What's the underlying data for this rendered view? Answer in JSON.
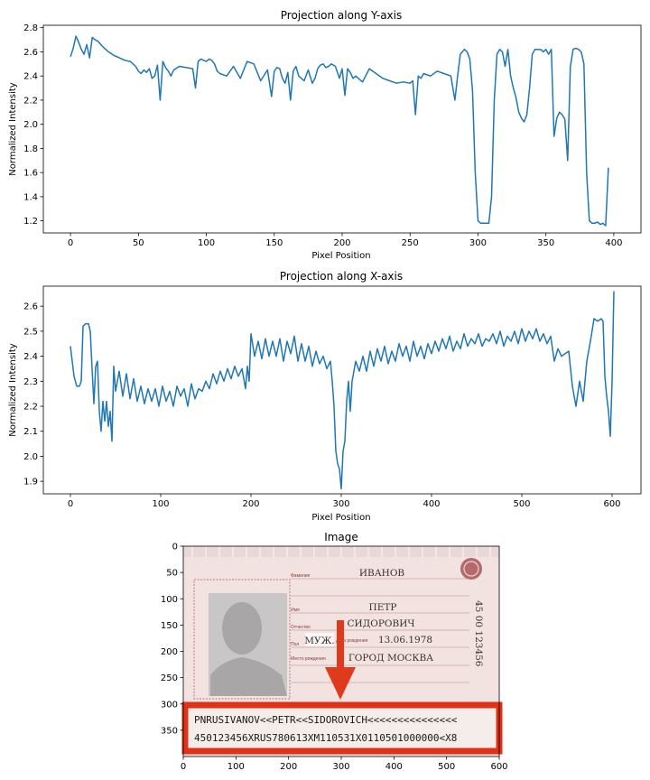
{
  "chart_data": [
    {
      "type": "line",
      "title": "Projection along Y-axis",
      "xlabel": "Pixel Position",
      "ylabel": "Normalized Intensity",
      "xlim": [
        -20,
        420
      ],
      "ylim": [
        1.1,
        2.82
      ],
      "xticks": [
        0,
        50,
        100,
        150,
        200,
        250,
        300,
        350,
        400
      ],
      "yticks": [
        1.2,
        1.4,
        1.6,
        1.8,
        2.0,
        2.2,
        2.4,
        2.6,
        2.8
      ],
      "color": "#1f77b4",
      "x": [
        0,
        2,
        4,
        6,
        8,
        10,
        12,
        14,
        16,
        18,
        20,
        24,
        28,
        32,
        36,
        40,
        44,
        48,
        50,
        52,
        54,
        56,
        58,
        60,
        62,
        64,
        66,
        68,
        70,
        72,
        74,
        76,
        80,
        85,
        90,
        92,
        94,
        96,
        98,
        100,
        102,
        104,
        106,
        108,
        110,
        115,
        120,
        125,
        130,
        135,
        140,
        145,
        148,
        150,
        152,
        154,
        156,
        158,
        160,
        162,
        164,
        166,
        168,
        170,
        172,
        175,
        178,
        180,
        182,
        184,
        186,
        188,
        190,
        192,
        195,
        198,
        200,
        202,
        204,
        206,
        208,
        210,
        215,
        220,
        225,
        230,
        235,
        240,
        245,
        250,
        252,
        254,
        256,
        258,
        260,
        265,
        270,
        275,
        280,
        283,
        285,
        287,
        290,
        292,
        294,
        296,
        298,
        300,
        302,
        305,
        308,
        310,
        312,
        314,
        316,
        318,
        320,
        322,
        324,
        326,
        328,
        330,
        332,
        334,
        336,
        338,
        340,
        342,
        344,
        346,
        348,
        350,
        352,
        354,
        356,
        358,
        360,
        362,
        364,
        366,
        368,
        370,
        372,
        374,
        376,
        378,
        380,
        382,
        384,
        386,
        388,
        390,
        392,
        394,
        396
      ],
      "values": [
        2.56,
        2.63,
        2.73,
        2.68,
        2.62,
        2.58,
        2.66,
        2.55,
        2.72,
        2.7,
        2.69,
        2.64,
        2.6,
        2.57,
        2.55,
        2.53,
        2.52,
        2.48,
        2.44,
        2.42,
        2.45,
        2.43,
        2.46,
        2.38,
        2.4,
        2.49,
        2.2,
        2.52,
        2.47,
        2.44,
        2.4,
        2.45,
        2.48,
        2.47,
        2.46,
        2.3,
        2.52,
        2.54,
        2.53,
        2.52,
        2.54,
        2.53,
        2.5,
        2.44,
        2.42,
        2.4,
        2.48,
        2.38,
        2.52,
        2.5,
        2.36,
        2.45,
        2.23,
        2.44,
        2.47,
        2.46,
        2.38,
        2.34,
        2.43,
        2.2,
        2.44,
        2.48,
        2.4,
        2.38,
        2.36,
        2.45,
        2.34,
        2.38,
        2.46,
        2.49,
        2.5,
        2.47,
        2.48,
        2.5,
        2.48,
        2.38,
        2.46,
        2.24,
        2.46,
        2.43,
        2.38,
        2.4,
        2.35,
        2.46,
        2.42,
        2.38,
        2.36,
        2.34,
        2.35,
        2.34,
        2.36,
        2.08,
        2.4,
        2.38,
        2.42,
        2.4,
        2.44,
        2.42,
        2.4,
        2.2,
        2.4,
        2.58,
        2.62,
        2.6,
        2.54,
        2.28,
        1.6,
        1.2,
        1.18,
        1.18,
        1.18,
        1.4,
        2.2,
        2.58,
        2.62,
        2.6,
        2.48,
        2.62,
        2.4,
        2.3,
        2.22,
        2.1,
        2.05,
        2.02,
        2.08,
        2.3,
        2.58,
        2.62,
        2.62,
        2.62,
        2.6,
        2.62,
        2.58,
        2.62,
        1.9,
        2.05,
        2.1,
        2.08,
        2.04,
        1.7,
        2.48,
        2.62,
        2.63,
        2.62,
        2.6,
        2.5,
        1.6,
        1.2,
        1.18,
        1.18,
        1.19,
        1.17,
        1.18,
        1.16,
        1.64
      ]
    },
    {
      "type": "line",
      "title": "Projection along X-axis",
      "xlabel": "Pixel Position",
      "ylabel": "Normalized Intensity",
      "xlim": [
        -30,
        632
      ],
      "ylim": [
        1.85,
        2.68
      ],
      "xticks": [
        0,
        100,
        200,
        300,
        400,
        500,
        600
      ],
      "yticks": [
        1.9,
        2.0,
        2.1,
        2.2,
        2.3,
        2.4,
        2.5,
        2.6
      ],
      "color": "#1f77b4",
      "x": [
        0,
        4,
        7,
        10,
        12,
        14,
        17,
        20,
        22,
        24,
        26,
        28,
        30,
        32,
        34,
        36,
        38,
        40,
        42,
        44,
        46,
        48,
        50,
        54,
        58,
        62,
        66,
        70,
        74,
        78,
        82,
        86,
        90,
        94,
        98,
        102,
        106,
        110,
        114,
        118,
        122,
        126,
        130,
        134,
        138,
        142,
        146,
        150,
        154,
        158,
        162,
        166,
        170,
        174,
        178,
        182,
        186,
        190,
        194,
        196,
        198,
        200,
        204,
        208,
        212,
        216,
        220,
        224,
        228,
        232,
        236,
        240,
        244,
        248,
        252,
        256,
        260,
        264,
        268,
        272,
        276,
        280,
        284,
        288,
        290,
        292,
        294,
        296,
        298,
        300,
        302,
        304,
        306,
        308,
        310,
        312,
        316,
        320,
        324,
        328,
        332,
        336,
        340,
        344,
        348,
        352,
        356,
        360,
        364,
        368,
        372,
        376,
        380,
        384,
        388,
        392,
        396,
        400,
        404,
        408,
        412,
        416,
        420,
        424,
        428,
        432,
        436,
        440,
        444,
        448,
        452,
        456,
        460,
        464,
        468,
        472,
        476,
        480,
        484,
        488,
        492,
        496,
        500,
        504,
        508,
        512,
        516,
        520,
        524,
        528,
        532,
        536,
        540,
        544,
        548,
        552,
        556,
        560,
        564,
        568,
        572,
        576,
        580,
        584,
        588,
        590,
        592,
        594,
        596,
        598,
        600,
        602
      ],
      "values": [
        2.44,
        2.32,
        2.28,
        2.28,
        2.3,
        2.52,
        2.53,
        2.53,
        2.5,
        2.35,
        2.21,
        2.36,
        2.38,
        2.18,
        2.1,
        2.22,
        2.14,
        2.22,
        2.12,
        2.18,
        2.06,
        2.36,
        2.26,
        2.34,
        2.24,
        2.33,
        2.23,
        2.31,
        2.22,
        2.28,
        2.21,
        2.27,
        2.22,
        2.27,
        2.2,
        2.28,
        2.22,
        2.26,
        2.2,
        2.28,
        2.24,
        2.27,
        2.2,
        2.29,
        2.23,
        2.27,
        2.26,
        2.3,
        2.27,
        2.33,
        2.29,
        2.34,
        2.3,
        2.35,
        2.31,
        2.36,
        2.32,
        2.35,
        2.27,
        2.36,
        2.3,
        2.49,
        2.4,
        2.46,
        2.39,
        2.47,
        2.4,
        2.46,
        2.4,
        2.47,
        2.38,
        2.46,
        2.41,
        2.48,
        2.38,
        2.45,
        2.38,
        2.44,
        2.36,
        2.42,
        2.37,
        2.4,
        2.35,
        2.38,
        2.3,
        2.2,
        2.02,
        1.97,
        1.95,
        1.87,
        2.02,
        2.06,
        2.22,
        2.3,
        2.18,
        2.3,
        2.38,
        2.34,
        2.4,
        2.34,
        2.42,
        2.36,
        2.43,
        2.38,
        2.44,
        2.37,
        2.42,
        2.38,
        2.45,
        2.4,
        2.44,
        2.38,
        2.46,
        2.4,
        2.44,
        2.39,
        2.45,
        2.41,
        2.46,
        2.42,
        2.47,
        2.43,
        2.48,
        2.42,
        2.46,
        2.43,
        2.49,
        2.44,
        2.47,
        2.45,
        2.49,
        2.44,
        2.47,
        2.46,
        2.49,
        2.45,
        2.5,
        2.44,
        2.48,
        2.46,
        2.5,
        2.45,
        2.51,
        2.46,
        2.5,
        2.47,
        2.51,
        2.46,
        2.49,
        2.45,
        2.48,
        2.38,
        2.43,
        2.4,
        2.41,
        2.42,
        2.28,
        2.2,
        2.3,
        2.22,
        2.38,
        2.46,
        2.55,
        2.54,
        2.55,
        2.54,
        2.32,
        2.24,
        2.18,
        2.08,
        2.3,
        2.66
      ]
    },
    {
      "type": "image",
      "title": "Image",
      "xlim": [
        0,
        600
      ],
      "ylim": [
        400,
        0
      ],
      "xticks": [
        0,
        100,
        200,
        300,
        400,
        500,
        600
      ],
      "yticks": [
        0,
        50,
        100,
        150,
        200,
        250,
        300,
        350
      ],
      "arrow_color": "#e03a1e",
      "box_color": "#e0321a",
      "passport": {
        "surname_caption": "Фамилия",
        "surname": "ИВАНОВ",
        "name_caption": "Имя",
        "name": "ПЕТР",
        "patronymic_caption": "Отчество",
        "patronymic": "СИДОРОВИЧ",
        "sex_caption": "Пол",
        "sex": "МУЖ.",
        "birthdate_caption": "Дата рождения",
        "birthdate": "13.06.1978",
        "birthplace_caption": "Место рождения",
        "birthplace": "ГОРОД МОСКВА",
        "series": "45 00 123456",
        "mrz_line1": "PNRUSIVANOV<<PETR<<SIDOROVICH<<<<<<<<<<<<<<<",
        "mrz_line2": "450123456XRUS780613XM110531X0110501000000<X8"
      }
    }
  ]
}
